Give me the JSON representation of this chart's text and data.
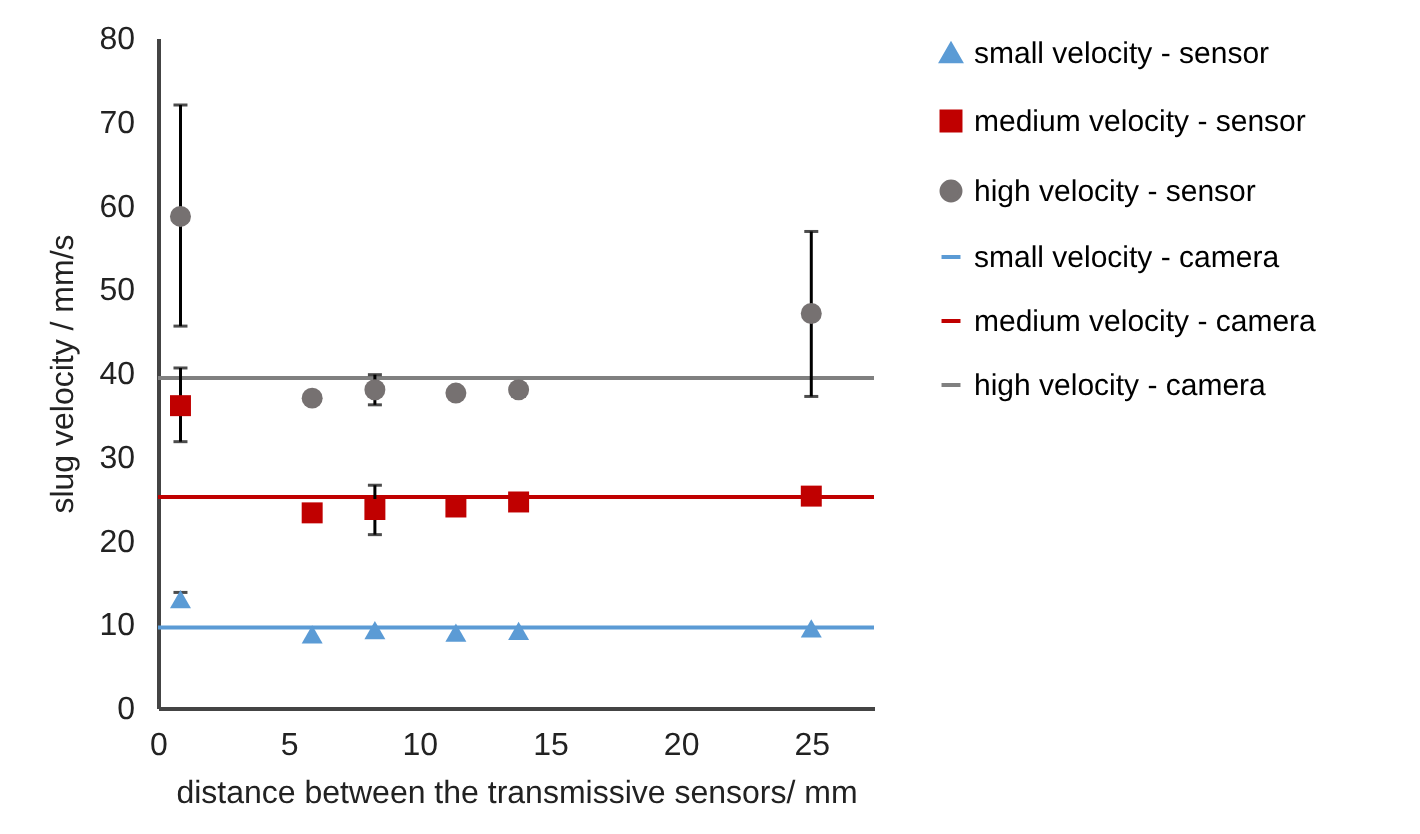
{
  "chart_data": {
    "type": "scatter",
    "xlabel": "distance between the transmissive sensors/ mm",
    "ylabel": "slug velocity / mm/s",
    "xlim": [
      0,
      27.4
    ],
    "xticks": [
      0,
      5,
      10,
      15,
      20,
      25
    ],
    "ylim": [
      0,
      80
    ],
    "yticks": [
      0,
      10,
      20,
      30,
      40,
      50,
      60,
      70,
      80
    ],
    "grid": false,
    "legend": "right",
    "series": [
      {
        "name": "small velocity - sensor",
        "marker": "triangle",
        "color": "#5b9bd5",
        "x": [
          0.86,
          5.9,
          8.3,
          11.4,
          13.8,
          25.0
        ],
        "values": [
          13.0,
          8.8,
          9.3,
          9.0,
          9.2,
          9.5
        ],
        "errors": [
          [
            12.2,
            13.8
          ],
          null,
          null,
          null,
          null,
          null
        ]
      },
      {
        "name": "medium velocity - sensor",
        "marker": "square",
        "color": "#c00000",
        "x": [
          0.86,
          5.9,
          8.3,
          11.4,
          13.8,
          25.0
        ],
        "values": [
          36.1,
          23.3,
          23.7,
          24.0,
          24.6,
          25.3
        ],
        "errors": [
          [
            31.8,
            40.6
          ],
          null,
          [
            20.7,
            26.6
          ],
          null,
          null,
          null
        ]
      },
      {
        "name": "high velocity - sensor",
        "marker": "circle",
        "color": "#767171",
        "x": [
          0.86,
          5.9,
          8.3,
          11.4,
          13.8,
          25.0
        ],
        "values": [
          58.7,
          37.0,
          38.0,
          37.6,
          38.0,
          47.1
        ],
        "errors": [
          [
            45.6,
            72.0
          ],
          null,
          [
            36.2,
            39.8
          ],
          null,
          [
            37.2,
            38.4
          ],
          [
            37.2,
            56.9
          ]
        ]
      },
      {
        "name": "small velocity - camera",
        "type": "line",
        "marker": "none",
        "color": "#5b9bd5",
        "x": [
          0,
          27.4
        ],
        "values": [
          9.6,
          9.6
        ]
      },
      {
        "name": "medium velocity - camera",
        "type": "line",
        "marker": "none",
        "color": "#c00000",
        "x": [
          0,
          27.4
        ],
        "values": [
          25.2,
          25.2
        ]
      },
      {
        "name": "high velocity - camera",
        "type": "line",
        "marker": "none",
        "color": "#808080",
        "x": [
          0,
          27.4
        ],
        "values": [
          39.4,
          39.4
        ]
      }
    ]
  }
}
